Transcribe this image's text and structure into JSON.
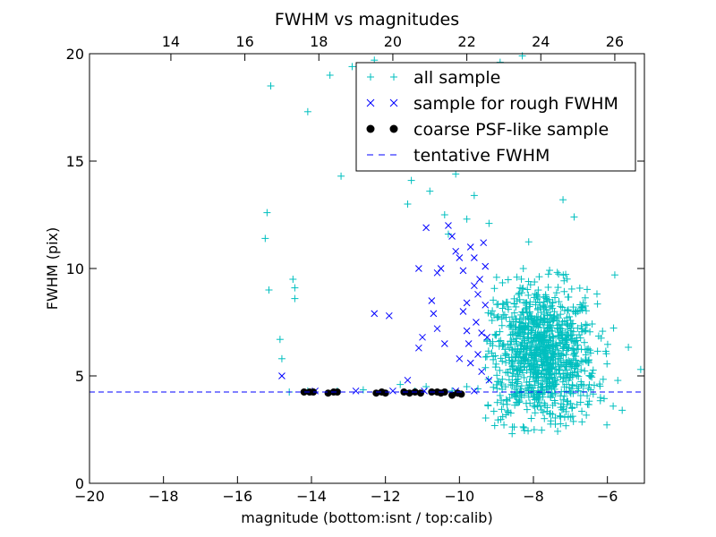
{
  "chart_data": {
    "type": "scatter",
    "title": "FWHM vs magnitudes",
    "xlabel": "magnitude (bottom:isnt / top:calib)",
    "ylabel": "FWHM (pix)",
    "xlim": [
      -20,
      -5
    ],
    "ylim": [
      0,
      20
    ],
    "x_ticks": [
      -20,
      -18,
      -16,
      -14,
      -12,
      -10,
      -8,
      -6
    ],
    "x_tick_labels": [
      "−20",
      "−18",
      "−16",
      "−14",
      "−12",
      "−10",
      "−8",
      "−6"
    ],
    "y_ticks": [
      0,
      5,
      10,
      15,
      20
    ],
    "y_tick_labels": [
      "0",
      "5",
      "10",
      "15",
      "20"
    ],
    "top_axis": {
      "label_offset": 31.8,
      "ticks": [
        14,
        16,
        18,
        20,
        22,
        24,
        26
      ],
      "tick_labels": [
        "14",
        "16",
        "18",
        "20",
        "22",
        "24",
        "26"
      ]
    },
    "legend_position": "upper-right",
    "grid": false,
    "colors": {
      "all_sample": "#00bfbf",
      "rough_sample": "#0000ff",
      "psf_sample": "#000000",
      "tentative_line": "#0000ff"
    },
    "series": [
      {
        "name": "all sample",
        "marker": "plus",
        "generated_bulk": {
          "count": 1100,
          "x_center": -7.8,
          "x_spread": 0.75,
          "y_center": 6.0,
          "y_spread": 1.6,
          "x_min": -9.3,
          "x_max": -5.0,
          "y_min": 2.3,
          "y_max": 13.0
        },
        "points": [
          [
            -15.1,
            18.5
          ],
          [
            -15.2,
            12.6
          ],
          [
            -15.25,
            11.4
          ],
          [
            -15.15,
            9.0
          ],
          [
            -14.5,
            9.5
          ],
          [
            -14.45,
            8.6
          ],
          [
            -14.45,
            9.1
          ],
          [
            -14.85,
            6.7
          ],
          [
            -14.8,
            5.8
          ],
          [
            -14.1,
            17.3
          ],
          [
            -13.5,
            19.0
          ],
          [
            -13.2,
            14.3
          ],
          [
            -12.9,
            19.4
          ],
          [
            -12.3,
            19.7
          ],
          [
            -11.9,
            18.4
          ],
          [
            -11.4,
            13.0
          ],
          [
            -11.3,
            14.1
          ],
          [
            -10.8,
            13.6
          ],
          [
            -10.1,
            14.4
          ],
          [
            -9.8,
            12.3
          ],
          [
            -10.4,
            12.5
          ],
          [
            -10.3,
            11.6
          ],
          [
            -9.4,
            17.5
          ],
          [
            -8.9,
            19.6
          ],
          [
            -8.3,
            19.9
          ],
          [
            -8.0,
            18.9
          ],
          [
            -7.6,
            17.6
          ],
          [
            -9.9,
            15.8
          ],
          [
            -9.6,
            13.4
          ],
          [
            -9.2,
            12.1
          ],
          [
            -7.2,
            13.2
          ],
          [
            -6.9,
            12.4
          ],
          [
            -5.8,
            9.7
          ],
          [
            -5.1,
            5.3
          ],
          [
            -5.6,
            3.4
          ],
          [
            -10.9,
            4.5
          ],
          [
            -11.6,
            4.6
          ],
          [
            -12.6,
            4.35
          ],
          [
            -13.3,
            4.3
          ],
          [
            -14.1,
            4.3
          ],
          [
            -14.6,
            4.25
          ],
          [
            -9.5,
            4.4
          ],
          [
            -9.8,
            4.5
          ],
          [
            -10.2,
            4.3
          ],
          [
            -11.2,
            4.3
          ]
        ]
      },
      {
        "name": "sample for rough FWHM",
        "marker": "x",
        "points": [
          [
            -14.8,
            5.0
          ],
          [
            -12.3,
            7.9
          ],
          [
            -11.9,
            7.8
          ],
          [
            -11.1,
            10.0
          ],
          [
            -11.1,
            6.3
          ],
          [
            -11.0,
            6.8
          ],
          [
            -10.9,
            11.9
          ],
          [
            -10.75,
            8.5
          ],
          [
            -10.7,
            7.9
          ],
          [
            -10.6,
            9.8
          ],
          [
            -10.5,
            10.0
          ],
          [
            -10.4,
            6.5
          ],
          [
            -10.3,
            12.0
          ],
          [
            -10.2,
            11.5
          ],
          [
            -10.1,
            10.8
          ],
          [
            -10.0,
            10.5
          ],
          [
            -9.9,
            9.9
          ],
          [
            -9.9,
            8.0
          ],
          [
            -9.8,
            8.4
          ],
          [
            -9.8,
            7.1
          ],
          [
            -9.75,
            6.5
          ],
          [
            -9.7,
            11.0
          ],
          [
            -9.7,
            5.6
          ],
          [
            -9.6,
            10.5
          ],
          [
            -9.6,
            9.2
          ],
          [
            -9.55,
            7.5
          ],
          [
            -9.5,
            8.8
          ],
          [
            -9.5,
            6.0
          ],
          [
            -9.45,
            9.5
          ],
          [
            -9.4,
            7.0
          ],
          [
            -9.4,
            5.2
          ],
          [
            -9.35,
            11.2
          ],
          [
            -9.3,
            10.1
          ],
          [
            -9.3,
            8.3
          ],
          [
            -9.25,
            6.8
          ],
          [
            -9.2,
            4.8
          ],
          [
            -10.6,
            7.2
          ],
          [
            -10.0,
            5.8
          ],
          [
            -11.4,
            4.8
          ],
          [
            -13.9,
            4.3
          ],
          [
            -12.8,
            4.3
          ],
          [
            -11.8,
            4.3
          ],
          [
            -10.95,
            4.3
          ],
          [
            -10.1,
            4.3
          ],
          [
            -9.6,
            4.3
          ]
        ]
      },
      {
        "name": "coarse PSF-like sample",
        "marker": "dot",
        "points": [
          [
            -14.2,
            4.25
          ],
          [
            -14.05,
            4.25
          ],
          [
            -13.95,
            4.25
          ],
          [
            -13.55,
            4.2
          ],
          [
            -13.4,
            4.25
          ],
          [
            -13.3,
            4.25
          ],
          [
            -12.25,
            4.2
          ],
          [
            -12.1,
            4.25
          ],
          [
            -12.0,
            4.2
          ],
          [
            -11.5,
            4.25
          ],
          [
            -11.35,
            4.2
          ],
          [
            -11.2,
            4.25
          ],
          [
            -11.05,
            4.2
          ],
          [
            -10.75,
            4.25
          ],
          [
            -10.6,
            4.25
          ],
          [
            -10.5,
            4.2
          ],
          [
            -10.4,
            4.25
          ],
          [
            -10.2,
            4.1
          ],
          [
            -10.05,
            4.2
          ],
          [
            -9.95,
            4.15
          ]
        ]
      },
      {
        "name": "tentative FWHM",
        "marker": "dashed-line",
        "y": 4.25
      }
    ]
  }
}
